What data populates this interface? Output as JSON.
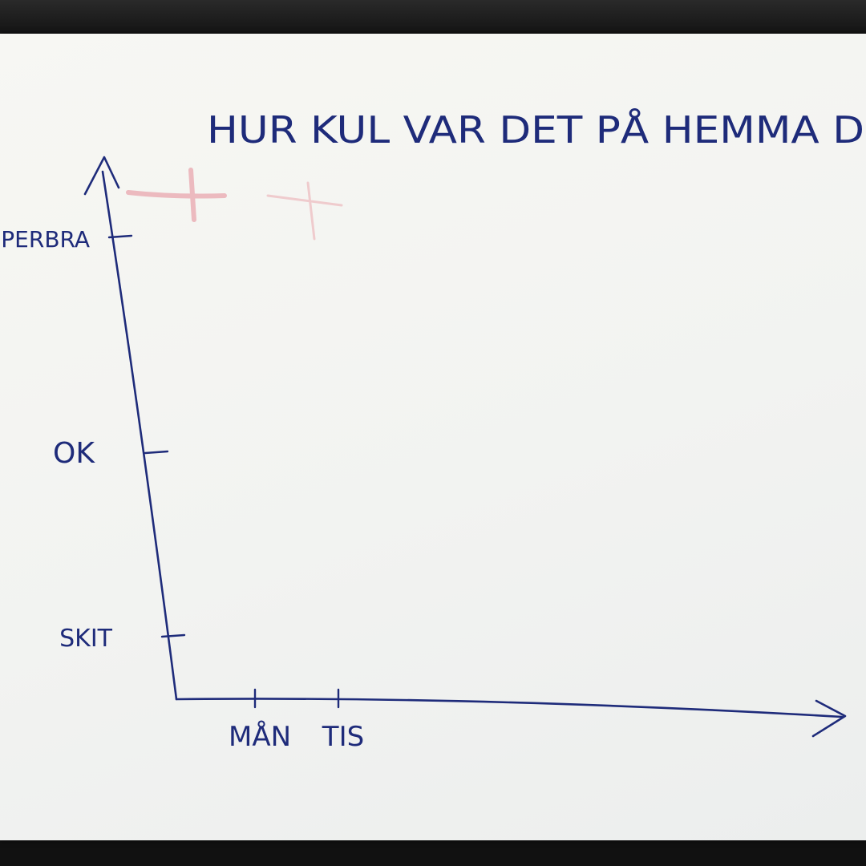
{
  "chart_data": {
    "type": "line",
    "title": "HUR KUL VAR DET PÅ HEMMA D",
    "xlabel": "",
    "ylabel": "",
    "categories": [
      "MÅN",
      "TIS"
    ],
    "y_ticks": [
      "SKIT",
      "OK",
      "PERBRA"
    ],
    "series": [],
    "grid": false,
    "ink_color": "#1e2b7a",
    "marker_color": "#e8a6ad"
  }
}
